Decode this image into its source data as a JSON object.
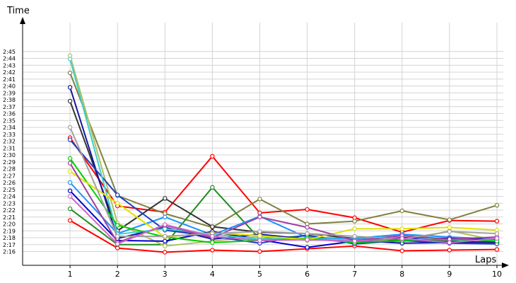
{
  "chart_data": {
    "type": "line",
    "xlabel": "Laps",
    "ylabel": "Time",
    "x": [
      1,
      2,
      3,
      4,
      5,
      6,
      7,
      8,
      9,
      10
    ],
    "xlim": [
      0,
      10
    ],
    "yticks_sec": [
      136,
      137,
      138,
      139,
      140,
      141,
      142,
      143,
      144,
      145,
      146,
      147,
      148,
      149,
      150,
      151,
      152,
      153,
      154,
      155,
      156,
      157,
      158,
      159,
      160,
      161,
      162,
      163,
      164,
      165
    ],
    "ytick_labels": [
      "2:16",
      "2:17",
      "2:18",
      "2:19",
      "2:20",
      "2:21",
      "2:22",
      "2:23",
      "2:24",
      "2:25",
      "2:26",
      "2:27",
      "2:28",
      "2:29",
      "2:30",
      "2:31",
      "2:32",
      "2:33",
      "2:34",
      "2:35",
      "2:36",
      "2:37",
      "2:38",
      "2:39",
      "2:40",
      "2:41",
      "2:42",
      "2:43",
      "2:44",
      "2:45"
    ],
    "ylim_sec": [
      134,
      170
    ],
    "grid": true,
    "series": [
      {
        "color": "#ff0000",
        "values": [
          140.5,
          136.5,
          135.9,
          136.2,
          136.0,
          136.4,
          136.8,
          136.1,
          136.2,
          136.3
        ]
      },
      {
        "color": "#ff0000",
        "values": [
          152.5,
          142.6,
          141.7,
          149.8,
          141.6,
          142.1,
          140.9,
          138.8,
          140.5,
          140.4
        ]
      },
      {
        "color": "#808040",
        "values": [
          161.9,
          144.1,
          141.5,
          139.5,
          143.6,
          140.0,
          140.4,
          141.9,
          140.6,
          142.7
        ]
      },
      {
        "color": "#228b22",
        "values": [
          142.2,
          137.0,
          137.0,
          145.3,
          137.8,
          138.3,
          137.3,
          137.7,
          137.4,
          137.2
        ]
      },
      {
        "color": "#333333",
        "values": [
          157.8,
          139.0,
          143.7,
          139.6,
          138.8,
          138.6,
          137.9,
          137.6,
          137.5,
          137.3
        ]
      },
      {
        "color": "#b0c060",
        "values": [
          164.4,
          140.1,
          136.8,
          137.5,
          138.2,
          137.6,
          137.9,
          137.4,
          139.0,
          137.6
        ]
      },
      {
        "color": "#1e90ff",
        "values": [
          146.0,
          138.6,
          141.0,
          138.4,
          141.1,
          138.0,
          137.9,
          138.5,
          138.1,
          137.8
        ]
      },
      {
        "color": "#0000cc",
        "values": [
          144.8,
          137.6,
          137.5,
          138.9,
          137.7,
          136.6,
          137.5,
          138.0,
          137.9,
          137.7
        ]
      },
      {
        "color": "#1515a0",
        "values": [
          159.8,
          137.9,
          139.5,
          137.8,
          138.5,
          137.8,
          137.6,
          137.2,
          137.3,
          137.4
        ]
      },
      {
        "color": "#2040c0",
        "values": [
          152.2,
          144.2,
          139.1,
          138.2,
          137.2,
          138.4,
          137.1,
          137.6,
          137.2,
          137.1
        ]
      },
      {
        "color": "#40d0d0",
        "values": [
          163.9,
          138.5,
          139.3,
          138.5,
          137.8,
          137.9,
          137.7,
          138.3,
          137.7,
          137.6
        ]
      },
      {
        "color": "#00cc00",
        "values": [
          149.5,
          139.8,
          138.1,
          137.3,
          137.6,
          137.9,
          137.3,
          137.6,
          137.8,
          137.5
        ]
      },
      {
        "color": "#e0e000",
        "values": [
          147.6,
          143.0,
          138.1,
          138.7,
          138.3,
          137.7,
          139.3,
          139.3,
          139.5,
          139.1
        ]
      },
      {
        "color": "#a040a0",
        "values": [
          148.8,
          137.3,
          139.8,
          138.0,
          141.0,
          139.5,
          137.6,
          138.3,
          137.8,
          138.1
        ]
      },
      {
        "color": "#a0a0a0",
        "values": [
          154.0,
          138.2,
          138.2,
          138.6,
          138.9,
          138.6,
          138.2,
          137.8,
          138.9,
          138.6
        ]
      },
      {
        "color": "#cc66cc",
        "values": [
          144.0,
          137.1,
          139.9,
          138.2,
          137.6,
          137.7,
          137.5,
          137.9,
          137.3,
          137.9
        ]
      }
    ]
  }
}
